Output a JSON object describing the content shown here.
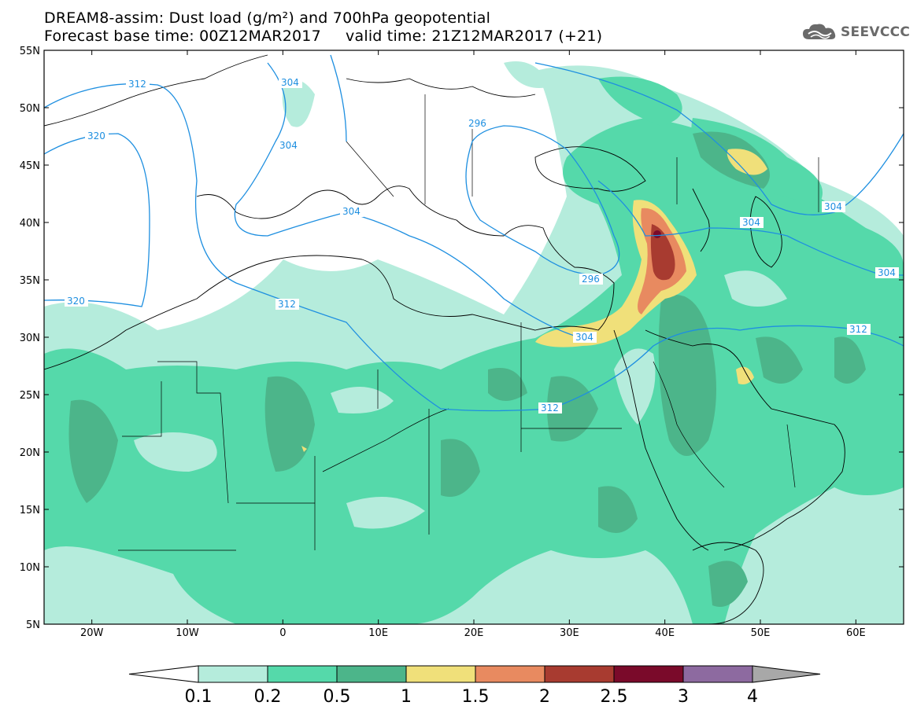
{
  "title": {
    "line1": "DREAM8-assim: Dust load (g/m²) and 700hPa geopotential",
    "line2": "Forecast base time: 00Z12MAR2017     valid time: 21Z12MAR2017 (+21)"
  },
  "logo": {
    "text": "SEEVCCC",
    "icon": "cloud-logo-icon"
  },
  "map": {
    "lon_range": [
      -25,
      65
    ],
    "lat_range": [
      5,
      55
    ],
    "lat_labels": [
      "55N",
      "50N",
      "45N",
      "40N",
      "35N",
      "30N",
      "25N",
      "20N",
      "15N",
      "10N",
      "5N"
    ],
    "lon_labels": [
      "20W",
      "10W",
      "0",
      "10E",
      "20E",
      "30E",
      "40E",
      "50E",
      "60E"
    ]
  },
  "contours": {
    "color": "#1e8fe0",
    "labels": [
      "312",
      "304",
      "320",
      "304",
      "296",
      "304",
      "312",
      "320",
      "312",
      "304",
      "296",
      "304",
      "312",
      "304",
      "304"
    ]
  },
  "colorbar": {
    "labels": [
      "0.1",
      "0.2",
      "0.5",
      "1",
      "1.5",
      "2",
      "2.5",
      "3",
      "4"
    ],
    "colors": [
      "#b5ecdc",
      "#55d9aa",
      "#4cb58a",
      "#f0e07a",
      "#e88a60",
      "#a83b30",
      "#7a0a2a",
      "#8d6aa0"
    ],
    "under_color": "#ffffff",
    "over_color": "#a8a8a8"
  }
}
